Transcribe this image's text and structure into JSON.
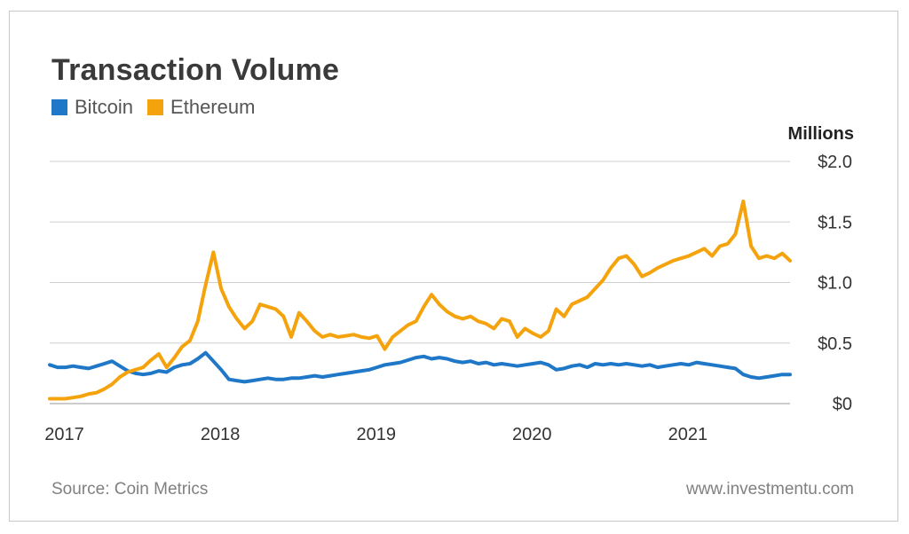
{
  "header": {
    "title": "Transaction Volume"
  },
  "legend": {
    "items": [
      {
        "label": "Bitcoin",
        "color": "#1f77c8"
      },
      {
        "label": "Ethereum",
        "color": "#f5a30c"
      }
    ]
  },
  "footer": {
    "source": "Source: Coin Metrics",
    "site": "www.investmentu.com"
  },
  "chart_data": {
    "type": "line",
    "title": "Transaction Volume",
    "unit_label": "Millions",
    "ylim": [
      0,
      2.0
    ],
    "yticks": [
      0,
      0.5,
      1.0,
      1.5,
      2.0
    ],
    "ytick_labels": [
      "$0",
      "$0.5",
      "$1.0",
      "$1.5",
      "$2.0"
    ],
    "xlim": [
      2016.9,
      2021.65
    ],
    "xticks": [
      2017,
      2018,
      2019,
      2020,
      2021
    ],
    "xtick_labels": [
      "2017",
      "2018",
      "2019",
      "2020",
      "2021"
    ],
    "grid": true,
    "legend_position": "top-left",
    "series": [
      {
        "name": "Bitcoin",
        "color": "#1f77c8",
        "points": [
          [
            2016.9,
            0.32
          ],
          [
            2016.95,
            0.3
          ],
          [
            2017.0,
            0.3
          ],
          [
            2017.05,
            0.31
          ],
          [
            2017.1,
            0.3
          ],
          [
            2017.15,
            0.29
          ],
          [
            2017.2,
            0.31
          ],
          [
            2017.25,
            0.33
          ],
          [
            2017.3,
            0.35
          ],
          [
            2017.35,
            0.31
          ],
          [
            2017.4,
            0.27
          ],
          [
            2017.45,
            0.25
          ],
          [
            2017.5,
            0.24
          ],
          [
            2017.55,
            0.25
          ],
          [
            2017.6,
            0.27
          ],
          [
            2017.65,
            0.26
          ],
          [
            2017.7,
            0.3
          ],
          [
            2017.75,
            0.32
          ],
          [
            2017.8,
            0.33
          ],
          [
            2017.85,
            0.37
          ],
          [
            2017.9,
            0.42
          ],
          [
            2017.95,
            0.35
          ],
          [
            2018.0,
            0.28
          ],
          [
            2018.05,
            0.2
          ],
          [
            2018.1,
            0.19
          ],
          [
            2018.15,
            0.18
          ],
          [
            2018.2,
            0.19
          ],
          [
            2018.25,
            0.2
          ],
          [
            2018.3,
            0.21
          ],
          [
            2018.35,
            0.2
          ],
          [
            2018.4,
            0.2
          ],
          [
            2018.45,
            0.21
          ],
          [
            2018.5,
            0.21
          ],
          [
            2018.55,
            0.22
          ],
          [
            2018.6,
            0.23
          ],
          [
            2018.65,
            0.22
          ],
          [
            2018.7,
            0.23
          ],
          [
            2018.75,
            0.24
          ],
          [
            2018.8,
            0.25
          ],
          [
            2018.85,
            0.26
          ],
          [
            2018.9,
            0.27
          ],
          [
            2018.95,
            0.28
          ],
          [
            2019.0,
            0.3
          ],
          [
            2019.05,
            0.32
          ],
          [
            2019.1,
            0.33
          ],
          [
            2019.15,
            0.34
          ],
          [
            2019.2,
            0.36
          ],
          [
            2019.25,
            0.38
          ],
          [
            2019.3,
            0.39
          ],
          [
            2019.35,
            0.37
          ],
          [
            2019.4,
            0.38
          ],
          [
            2019.45,
            0.37
          ],
          [
            2019.5,
            0.35
          ],
          [
            2019.55,
            0.34
          ],
          [
            2019.6,
            0.35
          ],
          [
            2019.65,
            0.33
          ],
          [
            2019.7,
            0.34
          ],
          [
            2019.75,
            0.32
          ],
          [
            2019.8,
            0.33
          ],
          [
            2019.85,
            0.32
          ],
          [
            2019.9,
            0.31
          ],
          [
            2019.95,
            0.32
          ],
          [
            2020.0,
            0.33
          ],
          [
            2020.05,
            0.34
          ],
          [
            2020.1,
            0.32
          ],
          [
            2020.15,
            0.28
          ],
          [
            2020.2,
            0.29
          ],
          [
            2020.25,
            0.31
          ],
          [
            2020.3,
            0.32
          ],
          [
            2020.35,
            0.3
          ],
          [
            2020.4,
            0.33
          ],
          [
            2020.45,
            0.32
          ],
          [
            2020.5,
            0.33
          ],
          [
            2020.55,
            0.32
          ],
          [
            2020.6,
            0.33
          ],
          [
            2020.65,
            0.32
          ],
          [
            2020.7,
            0.31
          ],
          [
            2020.75,
            0.32
          ],
          [
            2020.8,
            0.3
          ],
          [
            2020.85,
            0.31
          ],
          [
            2020.9,
            0.32
          ],
          [
            2020.95,
            0.33
          ],
          [
            2021.0,
            0.32
          ],
          [
            2021.05,
            0.34
          ],
          [
            2021.1,
            0.33
          ],
          [
            2021.15,
            0.32
          ],
          [
            2021.2,
            0.31
          ],
          [
            2021.25,
            0.3
          ],
          [
            2021.3,
            0.29
          ],
          [
            2021.35,
            0.24
          ],
          [
            2021.4,
            0.22
          ],
          [
            2021.45,
            0.21
          ],
          [
            2021.5,
            0.22
          ],
          [
            2021.55,
            0.23
          ],
          [
            2021.6,
            0.24
          ],
          [
            2021.65,
            0.24
          ]
        ]
      },
      {
        "name": "Ethereum",
        "color": "#f5a30c",
        "points": [
          [
            2016.9,
            0.04
          ],
          [
            2016.95,
            0.04
          ],
          [
            2017.0,
            0.04
          ],
          [
            2017.05,
            0.05
          ],
          [
            2017.1,
            0.06
          ],
          [
            2017.15,
            0.08
          ],
          [
            2017.2,
            0.09
          ],
          [
            2017.25,
            0.12
          ],
          [
            2017.3,
            0.16
          ],
          [
            2017.35,
            0.22
          ],
          [
            2017.4,
            0.26
          ],
          [
            2017.45,
            0.28
          ],
          [
            2017.5,
            0.3
          ],
          [
            2017.55,
            0.36
          ],
          [
            2017.6,
            0.41
          ],
          [
            2017.65,
            0.3
          ],
          [
            2017.7,
            0.38
          ],
          [
            2017.75,
            0.47
          ],
          [
            2017.8,
            0.52
          ],
          [
            2017.85,
            0.68
          ],
          [
            2017.9,
            0.98
          ],
          [
            2017.95,
            1.25
          ],
          [
            2018.0,
            0.95
          ],
          [
            2018.05,
            0.8
          ],
          [
            2018.1,
            0.7
          ],
          [
            2018.15,
            0.62
          ],
          [
            2018.2,
            0.68
          ],
          [
            2018.25,
            0.82
          ],
          [
            2018.3,
            0.8
          ],
          [
            2018.35,
            0.78
          ],
          [
            2018.4,
            0.72
          ],
          [
            2018.45,
            0.55
          ],
          [
            2018.5,
            0.75
          ],
          [
            2018.55,
            0.68
          ],
          [
            2018.6,
            0.6
          ],
          [
            2018.65,
            0.55
          ],
          [
            2018.7,
            0.57
          ],
          [
            2018.75,
            0.55
          ],
          [
            2018.8,
            0.56
          ],
          [
            2018.85,
            0.57
          ],
          [
            2018.9,
            0.55
          ],
          [
            2018.95,
            0.54
          ],
          [
            2019.0,
            0.56
          ],
          [
            2019.05,
            0.45
          ],
          [
            2019.1,
            0.55
          ],
          [
            2019.15,
            0.6
          ],
          [
            2019.2,
            0.65
          ],
          [
            2019.25,
            0.68
          ],
          [
            2019.3,
            0.8
          ],
          [
            2019.35,
            0.9
          ],
          [
            2019.4,
            0.82
          ],
          [
            2019.45,
            0.76
          ],
          [
            2019.5,
            0.72
          ],
          [
            2019.55,
            0.7
          ],
          [
            2019.6,
            0.72
          ],
          [
            2019.65,
            0.68
          ],
          [
            2019.7,
            0.66
          ],
          [
            2019.75,
            0.62
          ],
          [
            2019.8,
            0.7
          ],
          [
            2019.85,
            0.68
          ],
          [
            2019.9,
            0.55
          ],
          [
            2019.95,
            0.62
          ],
          [
            2020.0,
            0.58
          ],
          [
            2020.05,
            0.55
          ],
          [
            2020.1,
            0.6
          ],
          [
            2020.15,
            0.78
          ],
          [
            2020.2,
            0.72
          ],
          [
            2020.25,
            0.82
          ],
          [
            2020.3,
            0.85
          ],
          [
            2020.35,
            0.88
          ],
          [
            2020.4,
            0.95
          ],
          [
            2020.45,
            1.02
          ],
          [
            2020.5,
            1.12
          ],
          [
            2020.55,
            1.2
          ],
          [
            2020.6,
            1.22
          ],
          [
            2020.65,
            1.15
          ],
          [
            2020.7,
            1.05
          ],
          [
            2020.75,
            1.08
          ],
          [
            2020.8,
            1.12
          ],
          [
            2020.85,
            1.15
          ],
          [
            2020.9,
            1.18
          ],
          [
            2020.95,
            1.2
          ],
          [
            2021.0,
            1.22
          ],
          [
            2021.05,
            1.25
          ],
          [
            2021.1,
            1.28
          ],
          [
            2021.15,
            1.22
          ],
          [
            2021.2,
            1.3
          ],
          [
            2021.25,
            1.32
          ],
          [
            2021.3,
            1.4
          ],
          [
            2021.35,
            1.67
          ],
          [
            2021.4,
            1.3
          ],
          [
            2021.45,
            1.2
          ],
          [
            2021.5,
            1.22
          ],
          [
            2021.55,
            1.2
          ],
          [
            2021.6,
            1.24
          ],
          [
            2021.65,
            1.18
          ]
        ]
      }
    ]
  }
}
